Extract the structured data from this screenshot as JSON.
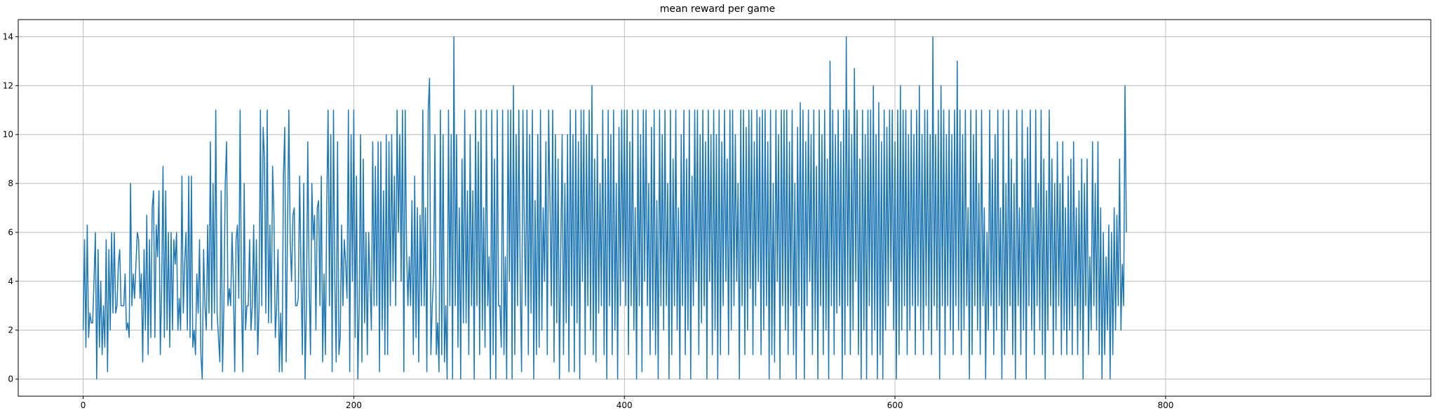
{
  "chart_data": {
    "type": "line",
    "title": "mean reward per game",
    "xlabel": "",
    "ylabel": "",
    "xlim": [
      -48,
      996
    ],
    "ylim": [
      -0.7,
      14.7
    ],
    "xticks": [
      0,
      200,
      400,
      600,
      800
    ],
    "yticks": [
      0,
      2,
      4,
      6,
      8,
      10,
      12,
      14
    ],
    "grid": true,
    "line_color": "#1f77b4",
    "series": [
      {
        "x_start": 0,
        "x_step": 1,
        "values": [
          2,
          5.7,
          1.3,
          6.3,
          1.7,
          2.7,
          2.3,
          2.3,
          4,
          6,
          0,
          5.3,
          1.3,
          4,
          1,
          3,
          1.3,
          5.7,
          0.3,
          5.3,
          2,
          6,
          2.7,
          6,
          2.7,
          3,
          4.7,
          5.3,
          3,
          3,
          3,
          4.3,
          2,
          2.3,
          1.7,
          8,
          3,
          4.3,
          3.3,
          4.7,
          6,
          5.7,
          3.3,
          4.3,
          0.7,
          5.3,
          2,
          6.7,
          1,
          5.7,
          1.7,
          7,
          7.7,
          1.7,
          6.3,
          5,
          7.7,
          1,
          3.7,
          8.7,
          1.7,
          7.7,
          2,
          6,
          1.3,
          6,
          2,
          5.7,
          4.7,
          6,
          2,
          3.3,
          2,
          8.3,
          2.7,
          4.7,
          6,
          2,
          8.3,
          1.7,
          8.3,
          1.3,
          2,
          1,
          4.3,
          2.7,
          5.7,
          1,
          0,
          5.3,
          3,
          2,
          6.3,
          2.7,
          9.7,
          2,
          8,
          2.7,
          11,
          2.7,
          1.7,
          0.7,
          7.7,
          0.3,
          3,
          8,
          9.7,
          3,
          3.7,
          3,
          6,
          4,
          0.3,
          5.7,
          6.3,
          3.3,
          11,
          3.3,
          0.3,
          8,
          2,
          3,
          3,
          5.7,
          2,
          3,
          6.3,
          2,
          5.7,
          1,
          3,
          11,
          3,
          10.3,
          9,
          2.7,
          11,
          2.3,
          6.3,
          2.3,
          8.7,
          6.7,
          1.7,
          3,
          5.3,
          0.3,
          2.7,
          0.3,
          8.3,
          10.3,
          0.7,
          6,
          11,
          5.7,
          4,
          6.7,
          7,
          3,
          3,
          3.3,
          8.3,
          4.3,
          1,
          8,
          0,
          3,
          9.7,
          4,
          1,
          8,
          5.7,
          6.7,
          2,
          7,
          7.3,
          3,
          8.3,
          0.7,
          4.3,
          1,
          7,
          11,
          3,
          10,
          0.3,
          11,
          4,
          0.7,
          9.7,
          1,
          1.7,
          6.3,
          3,
          5.7,
          4.7,
          3.3,
          11,
          0.3,
          10,
          4,
          11,
          1.7,
          8.3,
          0,
          3,
          10,
          0.7,
          9,
          2.3,
          6,
          1,
          6,
          4,
          2,
          9.7,
          3,
          8.7,
          3,
          9.7,
          0.3,
          9.7,
          2,
          7.7,
          1,
          10,
          1,
          9.7,
          3,
          10,
          4,
          8.3,
          3,
          11,
          6,
          10,
          4,
          11,
          0.3,
          11,
          5.3,
          3,
          5,
          3,
          7.3,
          1,
          8.3,
          1.7,
          7,
          0.7,
          6.7,
          3,
          11,
          3,
          7,
          0.3,
          11,
          12.3,
          1,
          3,
          4.3,
          10,
          1,
          2.3,
          0.3,
          11,
          1,
          10,
          0.7,
          3,
          0,
          11,
          3,
          10,
          0,
          14,
          3,
          10,
          1.3,
          7,
          0,
          9,
          2.3,
          11,
          2.3,
          7.7,
          1,
          10,
          3,
          7.7,
          0,
          11,
          3,
          9.7,
          1,
          11,
          2,
          7,
          1.3,
          11,
          3,
          5,
          0,
          11,
          1,
          9,
          0,
          11,
          3,
          3,
          1.3,
          11,
          1,
          5,
          0,
          11,
          4,
          11,
          0,
          12,
          1,
          10,
          3,
          11,
          4,
          0.3,
          11,
          6.3,
          3,
          11,
          1,
          10,
          2.7,
          11,
          0,
          7.3,
          1,
          10,
          1.3,
          11,
          2,
          7,
          4,
          9.7,
          1,
          11,
          7.3,
          3,
          11,
          0.7,
          10,
          2.3,
          9,
          0,
          5.3,
          10,
          1,
          8,
          2.3,
          10,
          0.3,
          11,
          3,
          10,
          0.3,
          11,
          2.3,
          9.7,
          0,
          11,
          4,
          11,
          1,
          10,
          3,
          11,
          2,
          12,
          1,
          9,
          0.7,
          10,
          2.7,
          8,
          3,
          11,
          1,
          9,
          0,
          11,
          3,
          10,
          1,
          11,
          2,
          8,
          0,
          10.3,
          3,
          11,
          4,
          11,
          3,
          11,
          1,
          9.7,
          3,
          11,
          2,
          7,
          0,
          11,
          3,
          10,
          0.3,
          11,
          4,
          11,
          3,
          8,
          1,
          10.3,
          2,
          11,
          1,
          7.3,
          0,
          11,
          3,
          10,
          2,
          11,
          3,
          8,
          0,
          11,
          1,
          9,
          3,
          11,
          2,
          7,
          0,
          10,
          3,
          11,
          1,
          9,
          2,
          11,
          0,
          8.3,
          3,
          11,
          4,
          11,
          1,
          10,
          2.3,
          11,
          3,
          9.7,
          0,
          11,
          4,
          10,
          1,
          11,
          2,
          10,
          0,
          11,
          1,
          9.7,
          3,
          11,
          4,
          9,
          1,
          11,
          2,
          11,
          3,
          10,
          4,
          8,
          0,
          11,
          3,
          11,
          1,
          10.3,
          2,
          11,
          3.7,
          11,
          1,
          9.7,
          3,
          11,
          4,
          10.7,
          1,
          11,
          2,
          11,
          3,
          9.7,
          0,
          11,
          1,
          8,
          0.7,
          11,
          4,
          10,
          0,
          11,
          3,
          11,
          2,
          11,
          1,
          9.7,
          3,
          11,
          1,
          8,
          0,
          10.3,
          3,
          11.3,
          2,
          11,
          0,
          9.7,
          3,
          11,
          4,
          10,
          1,
          11,
          2,
          8.7,
          0,
          11,
          3,
          10,
          1,
          11,
          2,
          9,
          0,
          13,
          3,
          11,
          1,
          10,
          2.7,
          11,
          3,
          9.7,
          0,
          11,
          1,
          14,
          3,
          11,
          1,
          10,
          2,
          12.7,
          4,
          11,
          1,
          9,
          0,
          11,
          2,
          10,
          0,
          11,
          3,
          11,
          1,
          12,
          2,
          10,
          0,
          11.3,
          1,
          9.7,
          0,
          11,
          2,
          10.3,
          3,
          11,
          4,
          11,
          2,
          9.7,
          0,
          11,
          1,
          12,
          2,
          11,
          3,
          11,
          1,
          10,
          2,
          11,
          3,
          10,
          1,
          11,
          3,
          12,
          2,
          10,
          1,
          11,
          3,
          11,
          2,
          10,
          1,
          14,
          3,
          10,
          2,
          11,
          0,
          12,
          3,
          11,
          1,
          10,
          3,
          11,
          2,
          10,
          1,
          11,
          3,
          13,
          2,
          11,
          1,
          10,
          2,
          11,
          3,
          7,
          0,
          11,
          1,
          10,
          3,
          11,
          2,
          8,
          1,
          11,
          3,
          7,
          0,
          6,
          2,
          11,
          3,
          9,
          1,
          10,
          2,
          11,
          3,
          7,
          0,
          11,
          1,
          8,
          2,
          11,
          3,
          9,
          1,
          8,
          0,
          11,
          3,
          7,
          1,
          11,
          2,
          9,
          0,
          10.3,
          3,
          11,
          2,
          7,
          1,
          11,
          3,
          8,
          2,
          11,
          1,
          9,
          0,
          7.7,
          2,
          11,
          3,
          9,
          1,
          8,
          2,
          9.7,
          3,
          8,
          1,
          9.7,
          2,
          7,
          1,
          8.3,
          2,
          9,
          1,
          9.7,
          3,
          7,
          1,
          7.7,
          2,
          9,
          0,
          8,
          3,
          9,
          1,
          5,
          2,
          9.7,
          3,
          8,
          2,
          9.7,
          1,
          7,
          0,
          6,
          1,
          5,
          2,
          6.3,
          0,
          6,
          1,
          7,
          2,
          6.7,
          3,
          9,
          2,
          4.7,
          3,
          12,
          6
        ]
      }
    ]
  }
}
